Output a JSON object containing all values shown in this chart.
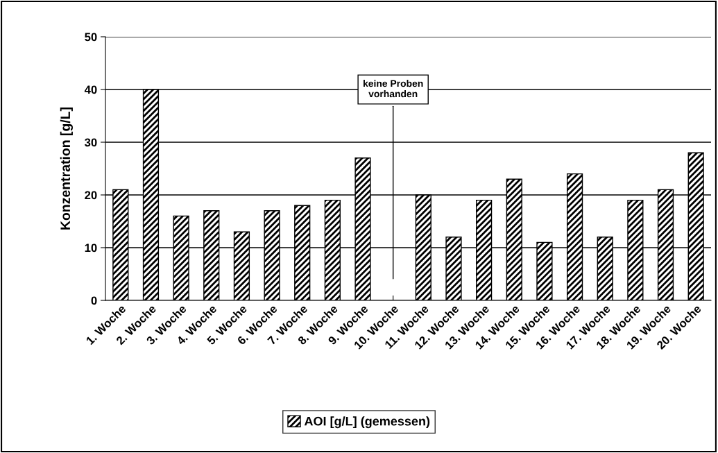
{
  "chart_data": {
    "type": "bar",
    "ylabel": "Konzentration [g/L]",
    "categories": [
      "1. Woche",
      "2. Woche",
      "3. Woche",
      "4. Woche",
      "5. Woche",
      "6. Woche",
      "7. Woche",
      "8. Woche",
      "9. Woche",
      "10. Woche",
      "11. Woche",
      "12. Woche",
      "13. Woche",
      "14. Woche",
      "15. Woche",
      "16. Woche",
      "17. Woche",
      "18. Woche",
      "19. Woche",
      "20. Woche"
    ],
    "series": [
      {
        "name": "AOI [g/L] (gemessen)",
        "color": "#000000",
        "values": [
          21,
          40,
          16,
          17,
          13,
          17,
          18,
          19,
          27,
          null,
          20,
          12,
          19,
          23,
          11,
          24,
          12,
          19,
          21,
          28
        ]
      }
    ],
    "ylim": [
      0,
      50
    ],
    "yticks": [
      0,
      10,
      20,
      30,
      40,
      50
    ],
    "grid": "y",
    "legend": "bottom",
    "annotations": [
      "keine Proben\nvorhanden"
    ]
  }
}
